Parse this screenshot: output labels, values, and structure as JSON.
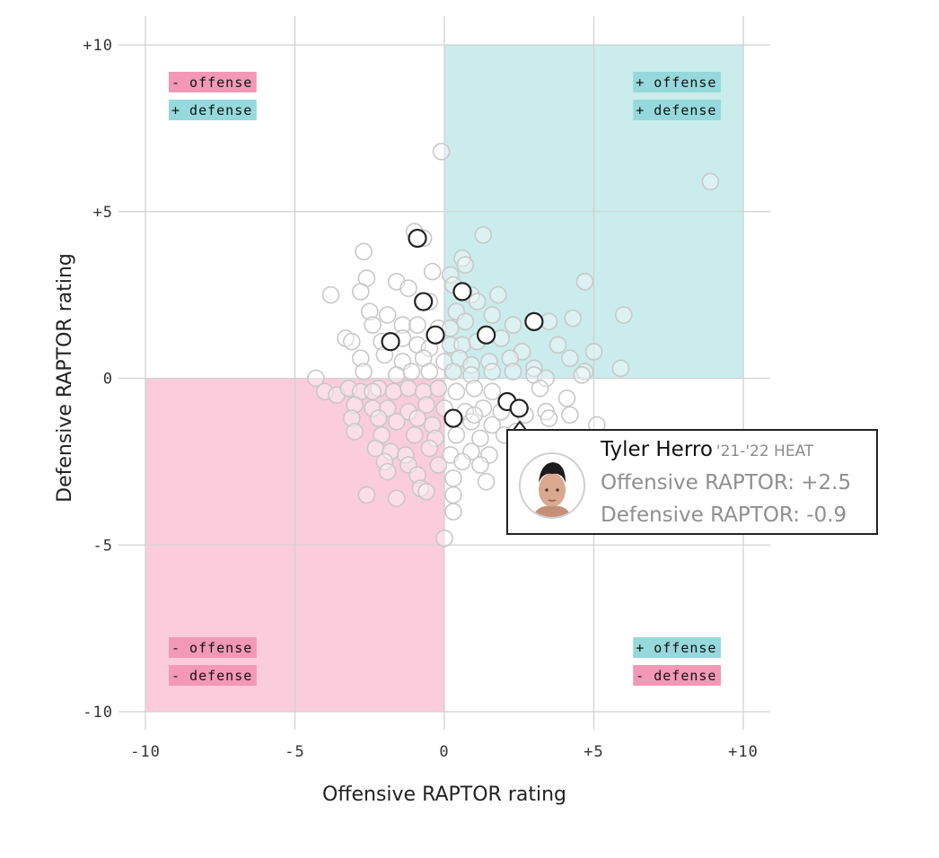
{
  "chart_data": {
    "type": "scatter",
    "xlabel": "Offensive RAPTOR rating",
    "ylabel": "Defensive RAPTOR rating",
    "xlim": [
      -10,
      10
    ],
    "ylim": [
      -10,
      10
    ],
    "x_ticks": [
      "-10",
      "-5",
      "0",
      "+5",
      "+10"
    ],
    "y_ticks": [
      "+10",
      "+5",
      "0",
      "-5",
      "-10"
    ],
    "grid": true,
    "colors": {
      "positive": "#9fdcdc",
      "negative": "#f7a3c0",
      "label_positive": "#95d9dc",
      "label_negative": "#f398b7",
      "point_fill": "#ffffff",
      "highlight_stroke": "#222222",
      "background_stroke": "#c8c8c8"
    },
    "quadrant_labels": {
      "top_left": [
        "- offense",
        "+ defense"
      ],
      "top_right": [
        "+ offense",
        "+ defense"
      ],
      "bottom_left": [
        "- offense",
        "- defense"
      ],
      "bottom_right": [
        "+ offense",
        "- defense"
      ]
    },
    "series": [
      {
        "role": "highlighted",
        "points": [
          [
            -0.9,
            4.2
          ],
          [
            -0.7,
            2.3
          ],
          [
            0.6,
            2.6
          ],
          [
            -0.3,
            1.3
          ],
          [
            1.4,
            1.3
          ],
          [
            3.0,
            1.7
          ],
          [
            -1.8,
            1.1
          ],
          [
            2.1,
            -0.7
          ],
          [
            2.5,
            -0.9
          ],
          [
            0.3,
            -1.2
          ]
        ]
      },
      {
        "role": "background",
        "points": [
          [
            -0.1,
            6.8
          ],
          [
            8.9,
            5.9
          ],
          [
            -1.0,
            4.4
          ],
          [
            -0.7,
            4.2
          ],
          [
            1.3,
            4.3
          ],
          [
            -2.7,
            3.8
          ],
          [
            0.6,
            3.6
          ],
          [
            0.7,
            3.4
          ],
          [
            -2.6,
            3.0
          ],
          [
            -0.4,
            3.2
          ],
          [
            0.2,
            3.1
          ],
          [
            0.3,
            2.8
          ],
          [
            -3.8,
            2.5
          ],
          [
            -2.8,
            2.6
          ],
          [
            -1.6,
            2.9
          ],
          [
            -1.2,
            2.7
          ],
          [
            4.7,
            2.9
          ],
          [
            0.9,
            2.5
          ],
          [
            1.8,
            2.5
          ],
          [
            1.1,
            2.3
          ],
          [
            -0.5,
            2.3
          ],
          [
            0.4,
            2.0
          ],
          [
            -2.5,
            2.0
          ],
          [
            -1.9,
            1.9
          ],
          [
            -1.4,
            1.6
          ],
          [
            -0.9,
            1.6
          ],
          [
            -2.4,
            1.6
          ],
          [
            -0.2,
            1.5
          ],
          [
            0.2,
            1.5
          ],
          [
            0.7,
            1.7
          ],
          [
            1.6,
            1.9
          ],
          [
            2.3,
            1.6
          ],
          [
            3.5,
            1.7
          ],
          [
            4.3,
            1.8
          ],
          [
            6.0,
            1.9
          ],
          [
            -3.3,
            1.2
          ],
          [
            -3.1,
            1.1
          ],
          [
            -2.1,
            1.1
          ],
          [
            -1.4,
            1.2
          ],
          [
            -0.9,
            1.0
          ],
          [
            -0.5,
            0.9
          ],
          [
            0.2,
            1.0
          ],
          [
            0.6,
            1.0
          ],
          [
            1.1,
            1.1
          ],
          [
            1.9,
            1.2
          ],
          [
            2.6,
            0.8
          ],
          [
            3.8,
            1.0
          ],
          [
            5.0,
            0.8
          ],
          [
            -2.8,
            0.6
          ],
          [
            -2.0,
            0.7
          ],
          [
            -1.4,
            0.5
          ],
          [
            -0.7,
            0.6
          ],
          [
            0.0,
            0.5
          ],
          [
            0.5,
            0.6
          ],
          [
            0.9,
            0.4
          ],
          [
            1.5,
            0.5
          ],
          [
            2.2,
            0.6
          ],
          [
            3.0,
            0.3
          ],
          [
            4.2,
            0.6
          ],
          [
            -2.7,
            0.2
          ],
          [
            -1.6,
            0.1
          ],
          [
            -1.1,
            0.2
          ],
          [
            -0.5,
            0.2
          ],
          [
            0.3,
            0.2
          ],
          [
            0.9,
            0.1
          ],
          [
            1.6,
            0.2
          ],
          [
            2.3,
            0.2
          ],
          [
            3.0,
            0.1
          ],
          [
            4.7,
            0.2
          ],
          [
            5.9,
            0.3
          ],
          [
            4.6,
            0.1
          ],
          [
            3.4,
            0.0
          ],
          [
            -4.3,
            0.0
          ],
          [
            -4.0,
            -0.4
          ],
          [
            -3.6,
            -0.5
          ],
          [
            -3.2,
            -0.3
          ],
          [
            -2.8,
            -0.4
          ],
          [
            -2.2,
            -0.3
          ],
          [
            -1.7,
            -0.4
          ],
          [
            -1.2,
            -0.3
          ],
          [
            -0.7,
            -0.4
          ],
          [
            -0.2,
            -0.3
          ],
          [
            0.4,
            -0.4
          ],
          [
            1.0,
            -0.3
          ],
          [
            1.6,
            -0.4
          ],
          [
            3.2,
            -0.3
          ],
          [
            4.1,
            -0.6
          ],
          [
            -3.0,
            -0.8
          ],
          [
            -2.4,
            -0.9
          ],
          [
            -1.9,
            -0.9
          ],
          [
            -1.2,
            -1.0
          ],
          [
            -0.6,
            -0.8
          ],
          [
            0.0,
            -0.9
          ],
          [
            0.7,
            -1.0
          ],
          [
            1.3,
            -0.9
          ],
          [
            1.9,
            -1.0
          ],
          [
            2.7,
            -1.1
          ],
          [
            3.4,
            -1.0
          ],
          [
            4.2,
            -1.1
          ],
          [
            -3.1,
            -1.2
          ],
          [
            -2.2,
            -1.2
          ],
          [
            -1.6,
            -1.3
          ],
          [
            -0.9,
            -1.2
          ],
          [
            -0.4,
            -1.4
          ],
          [
            0.9,
            -1.3
          ],
          [
            1.6,
            -1.4
          ],
          [
            3.5,
            -1.2
          ],
          [
            5.1,
            -1.4
          ],
          [
            -3.0,
            -1.6
          ],
          [
            -2.1,
            -1.7
          ],
          [
            -1.0,
            -1.7
          ],
          [
            -0.3,
            -1.8
          ],
          [
            0.4,
            -1.7
          ],
          [
            1.2,
            -1.8
          ],
          [
            2.0,
            -1.7
          ],
          [
            -2.3,
            -2.1
          ],
          [
            -1.8,
            -2.2
          ],
          [
            -1.3,
            -2.3
          ],
          [
            -0.5,
            -2.1
          ],
          [
            0.2,
            -2.3
          ],
          [
            0.9,
            -2.2
          ],
          [
            1.5,
            -2.3
          ],
          [
            -2.0,
            -2.5
          ],
          [
            -1.2,
            -2.6
          ],
          [
            -0.2,
            -2.6
          ],
          [
            0.6,
            -2.5
          ],
          [
            1.2,
            -2.6
          ],
          [
            -1.9,
            -2.8
          ],
          [
            -0.9,
            -2.9
          ],
          [
            0.3,
            -3.0
          ],
          [
            1.4,
            -3.1
          ],
          [
            -0.8,
            -3.3
          ],
          [
            -0.6,
            -3.4
          ],
          [
            -2.6,
            -3.5
          ],
          [
            -1.6,
            -3.6
          ],
          [
            0.3,
            -3.5
          ],
          [
            0.3,
            -4.0
          ],
          [
            6.9,
            -3.0
          ],
          [
            6.2,
            -3.6
          ],
          [
            0.0,
            -4.8
          ],
          [
            1.0,
            -1.1
          ],
          [
            2.4,
            -1.6
          ],
          [
            -2.4,
            -0.4
          ]
        ]
      }
    ]
  },
  "tooltip": {
    "name": "Tyler Herro",
    "season": "'21-'22 HEAT",
    "offensive": "Offensive RAPTOR: +2.5",
    "defensive": "Defensive RAPTOR: -0.9"
  }
}
